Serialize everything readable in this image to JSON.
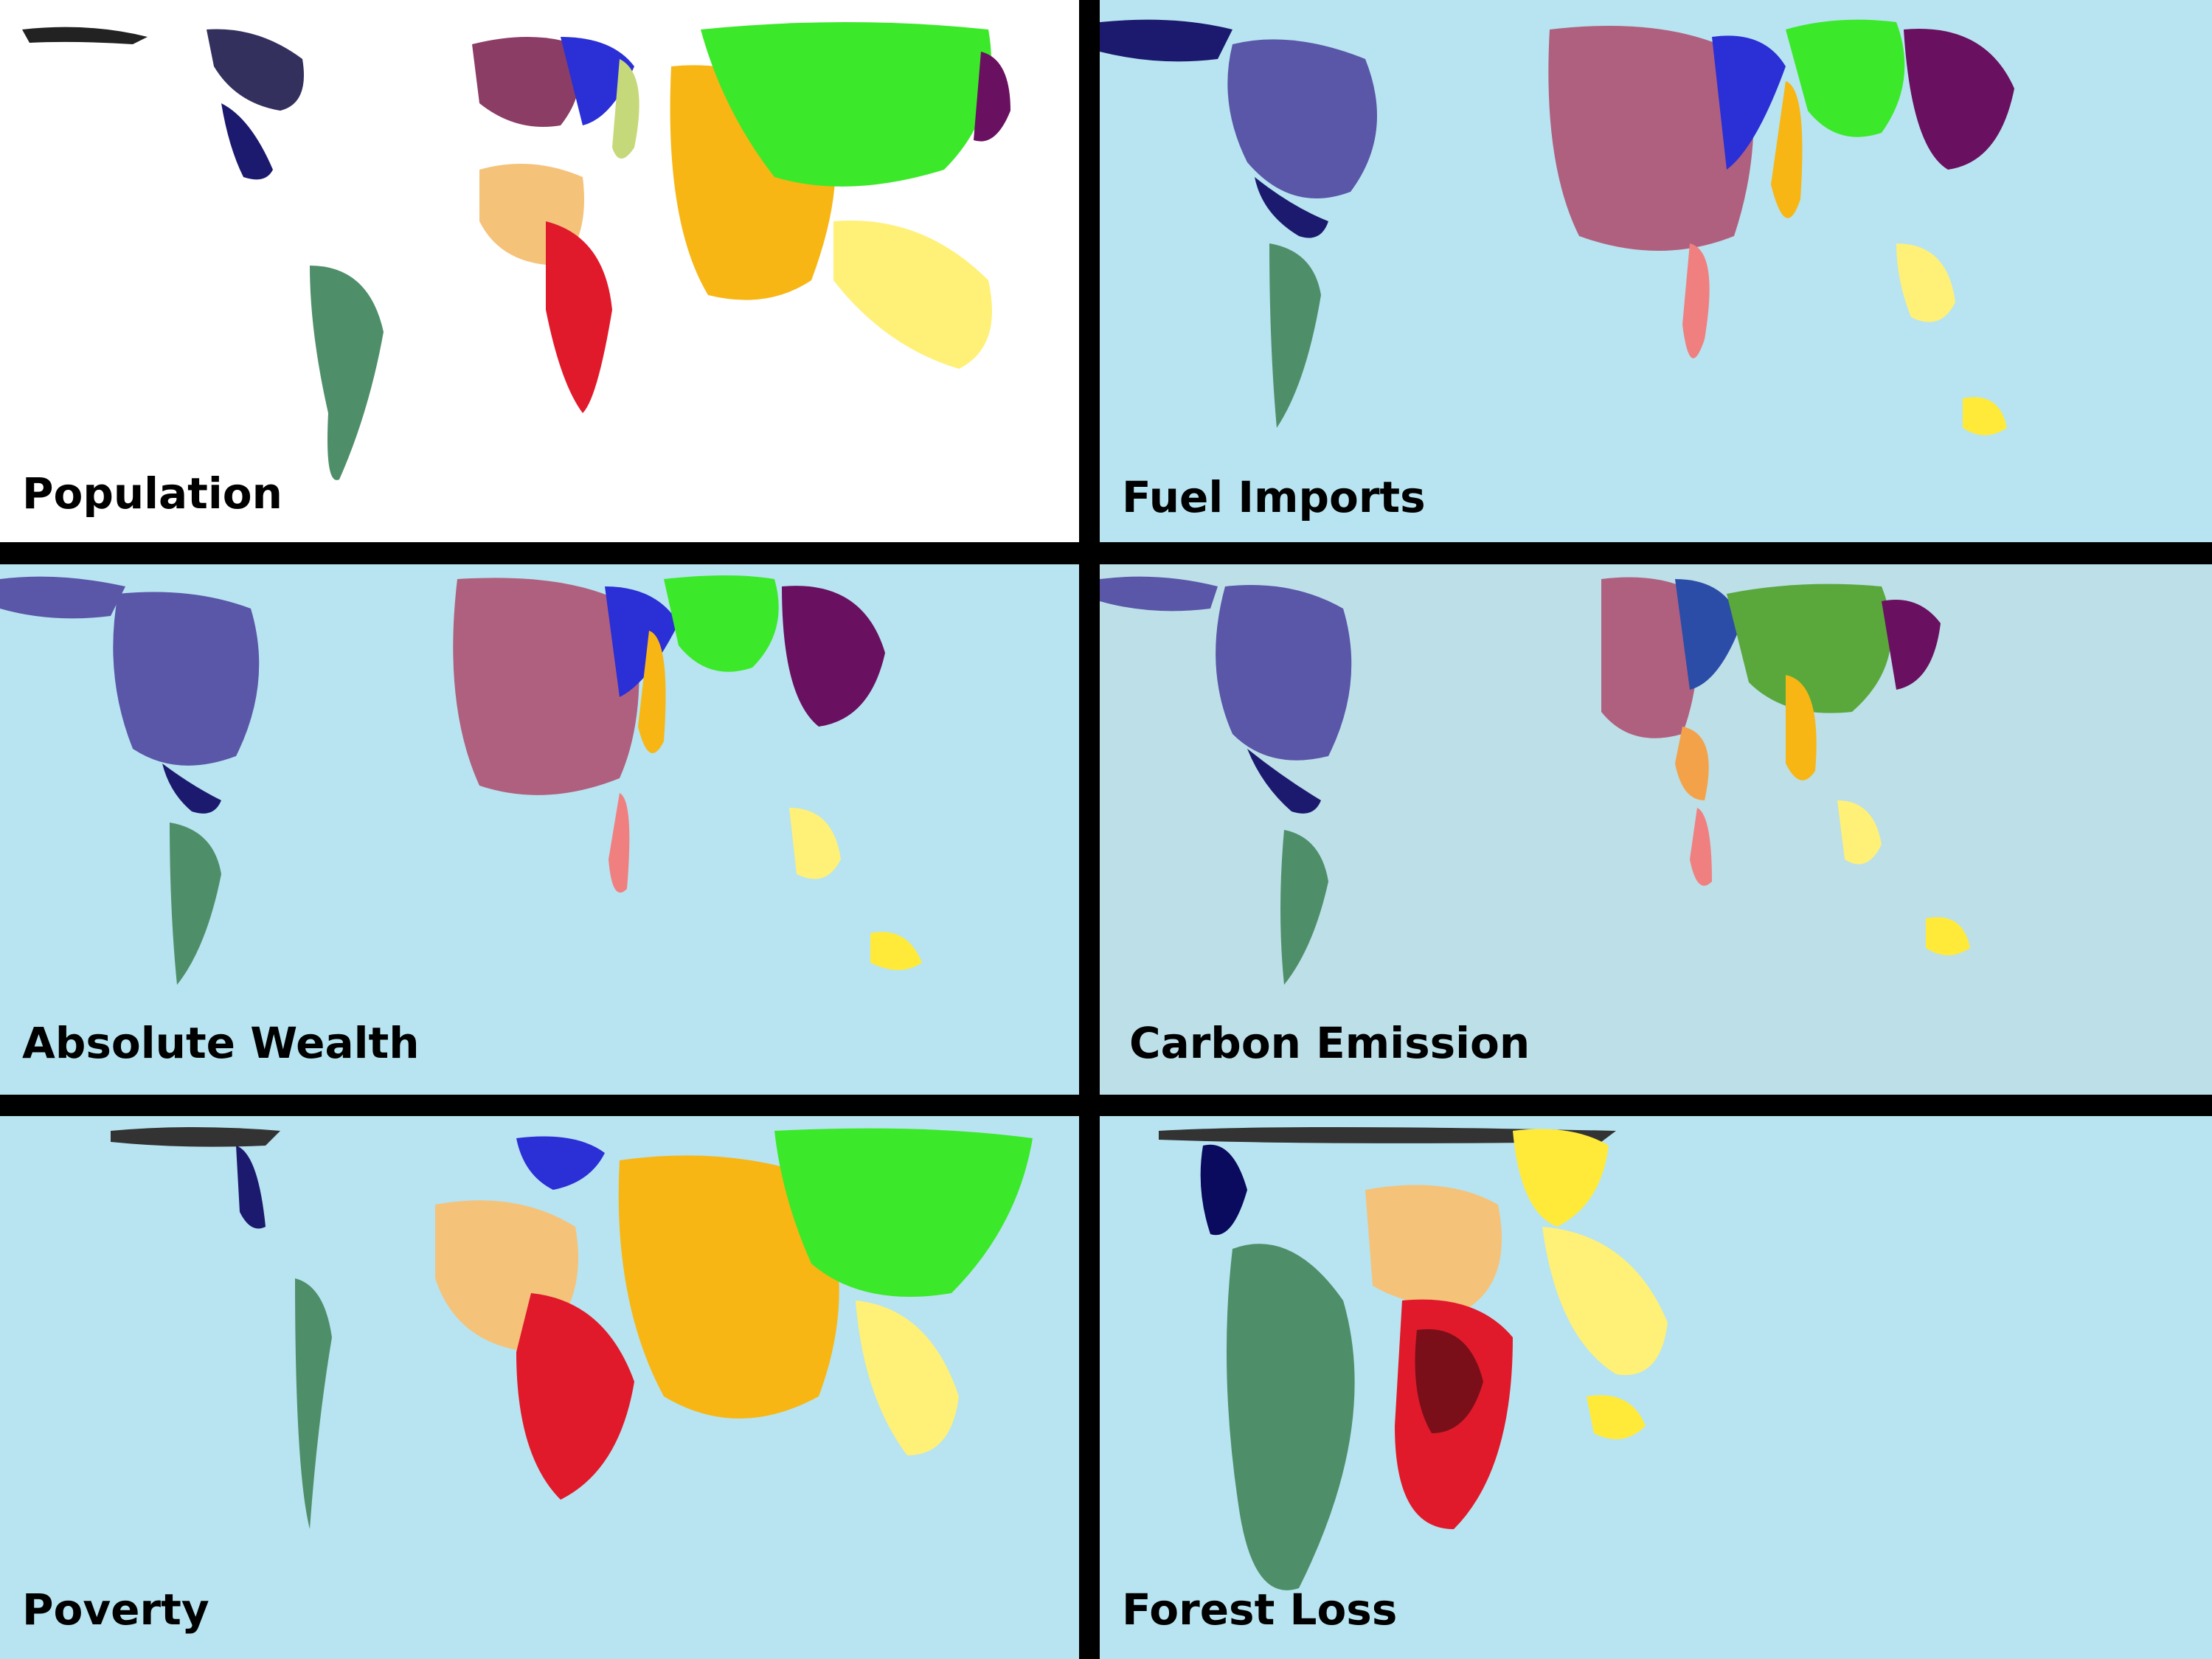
{
  "panels": [
    {
      "id": "population",
      "label": "Population",
      "background": "#ffffff"
    },
    {
      "id": "fuel-imports",
      "label": "Fuel Imports",
      "background": "#b7e4f0"
    },
    {
      "id": "absolute-wealth",
      "label": "Absolute Wealth",
      "background": "#b7e4f0"
    },
    {
      "id": "carbon-emission",
      "label": "Carbon Emission",
      "background": "#bcdfe8"
    },
    {
      "id": "poverty",
      "label": "Poverty",
      "background": "#b7e4f0"
    },
    {
      "id": "forest-loss",
      "label": "Forest Loss",
      "background": "#b7e4f0"
    }
  ],
  "region_colors": {
    "north_america": "#5a56a8",
    "mexico_central": "#1c1a6e",
    "south_america": "#4e8f6a",
    "western_europe": "#b0607f",
    "eastern_europe": "#2b2fd6",
    "middle_east": "#f3a24a",
    "north_africa": "#f5c27a",
    "central_africa": "#e01a2a",
    "southern_africa": "#f08080",
    "south_asia": "#f7b614",
    "china": "#3ce82a",
    "japan": "#6a1060",
    "southeast_asia": "#fff078",
    "oceania": "#ffea3a",
    "russia": "#c6d97a"
  }
}
